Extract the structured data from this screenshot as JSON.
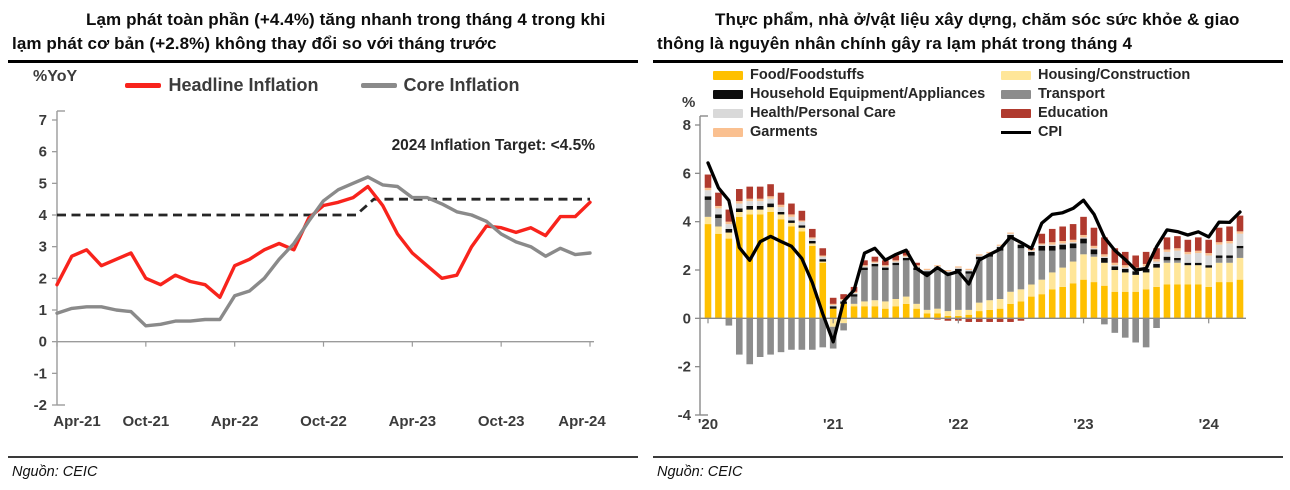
{
  "left_panel": {
    "source_label": "Nguồn: CEIC"
  },
  "right_panel": {
    "source_label": "Nguồn: CEIC"
  },
  "chart_data": [
    {
      "type": "line",
      "title": "Lạm phát toàn phần (+4.4%) tăng nhanh trong tháng 4 trong khi lạm phát cơ bản (+2.8%) không thay đổi so với tháng trước",
      "ylabel": "%YoY",
      "ylim": [
        -2,
        7
      ],
      "y_ticks": [
        7,
        6,
        5,
        4,
        3,
        2,
        1,
        0,
        -1,
        -2
      ],
      "x_tick_labels": [
        "Apr-21",
        "Oct-21",
        "Apr-22",
        "Oct-22",
        "Apr-23",
        "Oct-23",
        "Apr-24"
      ],
      "x_tick_indices": [
        0,
        6,
        12,
        18,
        24,
        30,
        36
      ],
      "x": [
        "Apr-21",
        "May-21",
        "Jun-21",
        "Jul-21",
        "Aug-21",
        "Sep-21",
        "Oct-21",
        "Nov-21",
        "Dec-21",
        "Jan-22",
        "Feb-22",
        "Mar-22",
        "Apr-22",
        "May-22",
        "Jun-22",
        "Jul-22",
        "Aug-22",
        "Sep-22",
        "Oct-22",
        "Nov-22",
        "Dec-22",
        "Jan-23",
        "Feb-23",
        "Mar-23",
        "Apr-23",
        "May-23",
        "Jun-23",
        "Jul-23",
        "Aug-23",
        "Sep-23",
        "Oct-23",
        "Nov-23",
        "Dec-23",
        "Jan-24",
        "Feb-24",
        "Mar-24",
        "Apr-24"
      ],
      "series": [
        {
          "name": "Headline Inflation",
          "color": "#F8231C",
          "values": [
            1.8,
            2.7,
            2.9,
            2.4,
            2.6,
            2.8,
            2.0,
            1.8,
            2.1,
            1.9,
            1.8,
            1.4,
            2.4,
            2.6,
            2.9,
            3.1,
            2.9,
            3.9,
            4.3,
            4.4,
            4.55,
            4.9,
            4.3,
            3.4,
            2.8,
            2.4,
            2.0,
            2.1,
            3.0,
            3.65,
            3.6,
            3.45,
            3.6,
            3.35,
            3.95,
            3.95,
            4.4
          ]
        },
        {
          "name": "Core Inflation",
          "color": "#8A8A8A",
          "values": [
            0.9,
            1.05,
            1.1,
            1.1,
            1.0,
            0.95,
            0.5,
            0.55,
            0.65,
            0.65,
            0.7,
            0.7,
            1.45,
            1.6,
            2.0,
            2.6,
            3.1,
            3.8,
            4.45,
            4.8,
            5.0,
            5.2,
            4.95,
            4.9,
            4.55,
            4.55,
            4.35,
            4.1,
            4.0,
            3.8,
            3.4,
            3.15,
            3.0,
            2.7,
            2.95,
            2.75,
            2.8
          ]
        }
      ],
      "target_lines": [
        {
          "value": 4.0,
          "from_index": 0,
          "to_index": 20.2
        },
        {
          "value": 4.5,
          "from_index": 21.4,
          "to_index": 36
        }
      ],
      "annotation": {
        "text": "2024 Inflation Target: <4.5%"
      },
      "legend_position": "top",
      "grid": false
    },
    {
      "type": "stacked-bar-line",
      "title": "Thực phẩm, nhà ở/vật liệu xây dựng, chăm sóc sức khỏe & giao thông là nguyên nhân chính gây ra lạm phát trong tháng 4",
      "ylabel": "%",
      "ylim": [
        -4,
        8
      ],
      "y_ticks": [
        8,
        6,
        4,
        2,
        0,
        -2,
        -4
      ],
      "x_tick_labels": [
        "'20",
        "'21",
        "'22",
        "'23",
        "'24"
      ],
      "x_tick_indices": [
        0,
        12,
        24,
        36,
        48
      ],
      "x": [
        "Jan-20",
        "Feb-20",
        "Mar-20",
        "Apr-20",
        "May-20",
        "Jun-20",
        "Jul-20",
        "Aug-20",
        "Sep-20",
        "Oct-20",
        "Nov-20",
        "Dec-20",
        "Jan-21",
        "Feb-21",
        "Mar-21",
        "Apr-21",
        "May-21",
        "Jun-21",
        "Jul-21",
        "Aug-21",
        "Sep-21",
        "Oct-21",
        "Nov-21",
        "Dec-21",
        "Jan-22",
        "Feb-22",
        "Mar-22",
        "Apr-22",
        "May-22",
        "Jun-22",
        "Jul-22",
        "Aug-22",
        "Sep-22",
        "Oct-22",
        "Nov-22",
        "Dec-22",
        "Jan-23",
        "Feb-23",
        "Mar-23",
        "Apr-23",
        "May-23",
        "Jun-23",
        "Jul-23",
        "Aug-23",
        "Sep-23",
        "Oct-23",
        "Nov-23",
        "Dec-23",
        "Jan-24",
        "Feb-24",
        "Mar-24",
        "Apr-24"
      ],
      "bar_series": [
        {
          "name": "Food/Foodstuffs",
          "color": "#FFC000",
          "values": [
            3.9,
            3.5,
            3.3,
            4.2,
            4.3,
            4.3,
            4.4,
            4.1,
            3.8,
            3.6,
            3.0,
            2.3,
            0.4,
            0.6,
            0.5,
            0.5,
            0.5,
            0.4,
            0.5,
            0.6,
            0.4,
            0.2,
            0.2,
            0.1,
            0.1,
            0.15,
            0.3,
            0.35,
            0.4,
            0.6,
            0.7,
            0.9,
            1.0,
            1.2,
            1.3,
            1.45,
            1.6,
            1.5,
            1.35,
            1.1,
            1.1,
            1.1,
            1.2,
            1.3,
            1.4,
            1.4,
            1.4,
            1.4,
            1.3,
            1.5,
            1.5,
            1.6
          ]
        },
        {
          "name": "Housing/Construction",
          "color": "#FFE699",
          "values": [
            0.3,
            0.3,
            0.25,
            0.2,
            0.2,
            0.2,
            0.2,
            0.2,
            0.15,
            0.15,
            0.1,
            0.05,
            -0.35,
            -0.2,
            0.1,
            0.2,
            0.25,
            0.3,
            0.3,
            0.3,
            0.2,
            0.15,
            0.2,
            0.2,
            0.25,
            0.2,
            0.35,
            0.4,
            0.4,
            0.5,
            0.5,
            0.5,
            0.6,
            0.7,
            0.8,
            0.9,
            1.05,
            1.05,
            0.95,
            0.9,
            0.8,
            0.7,
            0.7,
            0.8,
            0.9,
            0.9,
            0.8,
            0.8,
            0.8,
            0.8,
            0.8,
            0.9
          ]
        },
        {
          "name": "Transport",
          "color": "#8C8C8C",
          "values": [
            0.7,
            0.35,
            -0.3,
            -1.5,
            -1.9,
            -1.6,
            -1.5,
            -1.4,
            -1.3,
            -1.3,
            -1.3,
            -1.2,
            -0.9,
            -0.3,
            0.3,
            1.3,
            1.4,
            1.3,
            1.4,
            1.5,
            1.4,
            1.5,
            1.6,
            1.5,
            1.6,
            1.5,
            1.8,
            1.8,
            2.0,
            2.2,
            1.7,
            1.2,
            1.2,
            0.9,
            0.75,
            0.55,
            0.45,
            0.1,
            -0.25,
            -0.6,
            -0.8,
            -1.0,
            -1.2,
            -0.4,
            0.1,
            0.1,
            0.0,
            0.0,
            0.0,
            0.2,
            0.2,
            0.4
          ]
        },
        {
          "name": "Household Equipment/Appliances",
          "color": "#0D0D0D",
          "values": [
            0.15,
            0.15,
            0.15,
            0.15,
            0.15,
            0.15,
            0.15,
            0.1,
            0.1,
            0.1,
            0.1,
            0.1,
            0.1,
            0.1,
            0.1,
            0.1,
            0.1,
            0.1,
            0.1,
            0.1,
            0.1,
            0.1,
            0.1,
            0.1,
            0.1,
            0.1,
            0.1,
            0.1,
            0.15,
            0.15,
            0.15,
            0.15,
            0.2,
            0.2,
            0.2,
            0.2,
            0.2,
            0.2,
            0.2,
            0.15,
            0.15,
            0.15,
            0.15,
            0.15,
            0.15,
            0.1,
            0.1,
            0.1,
            0.1,
            0.1,
            0.1,
            0.1
          ]
        },
        {
          "name": "Health/Personal Care",
          "color": "#D9D9D9",
          "values": [
            0.25,
            0.25,
            0.2,
            0.2,
            0.2,
            0.2,
            0.2,
            0.2,
            0.15,
            0.15,
            0.1,
            0.1,
            0.05,
            0.05,
            0.05,
            0.05,
            0.05,
            0.05,
            0.05,
            0.05,
            0.05,
            0.05,
            0.05,
            0.05,
            0.05,
            0.05,
            0.05,
            0.05,
            0.05,
            0.05,
            0.05,
            0.05,
            0.05,
            0.05,
            0.05,
            0.05,
            0.05,
            0.05,
            0.05,
            0.05,
            0.05,
            0.05,
            0.1,
            0.1,
            0.2,
            0.3,
            0.35,
            0.4,
            0.4,
            0.45,
            0.5,
            0.5
          ]
        },
        {
          "name": "Garments",
          "color": "#FAC090",
          "values": [
            0.1,
            0.1,
            0.1,
            0.1,
            0.1,
            0.1,
            0.1,
            0.1,
            0.1,
            0.05,
            0.05,
            0.05,
            0.05,
            0.05,
            0.05,
            0.05,
            0.05,
            0.05,
            0.05,
            0.05,
            0.05,
            0.05,
            0.05,
            0.05,
            0.05,
            0.05,
            0.05,
            0.05,
            0.05,
            0.05,
            0.05,
            0.05,
            0.05,
            0.1,
            0.1,
            0.1,
            0.1,
            0.1,
            0.1,
            0.1,
            0.1,
            0.1,
            0.1,
            0.1,
            0.1,
            0.1,
            0.1,
            0.1,
            0.1,
            0.1,
            0.1,
            0.1
          ]
        },
        {
          "name": "Education",
          "color": "#B03A2E",
          "values": [
            0.55,
            0.55,
            0.5,
            0.5,
            0.5,
            0.5,
            0.5,
            0.5,
            0.45,
            0.4,
            0.35,
            0.3,
            0.25,
            0.2,
            0.2,
            0.2,
            0.2,
            0.2,
            0.2,
            0.2,
            0.1,
            0.0,
            -0.05,
            -0.1,
            -0.1,
            -0.15,
            -0.15,
            -0.15,
            -0.15,
            -0.15,
            -0.1,
            0.05,
            0.4,
            0.55,
            0.6,
            0.65,
            0.75,
            0.75,
            0.7,
            0.6,
            0.55,
            0.5,
            0.5,
            0.45,
            0.5,
            0.5,
            0.5,
            0.55,
            0.55,
            0.6,
            0.6,
            0.65
          ]
        }
      ],
      "line_series": {
        "name": "CPI",
        "color": "#000000",
        "values": [
          6.43,
          5.4,
          4.87,
          2.93,
          2.4,
          3.17,
          3.39,
          3.18,
          2.98,
          2.47,
          1.48,
          0.19,
          -0.97,
          0.7,
          1.16,
          2.7,
          2.9,
          2.41,
          2.64,
          2.82,
          2.06,
          1.77,
          2.1,
          1.81,
          1.94,
          1.42,
          2.41,
          2.64,
          2.86,
          3.37,
          3.14,
          2.89,
          3.94,
          4.3,
          4.37,
          4.55,
          4.89,
          4.31,
          3.35,
          2.81,
          2.43,
          2.0,
          2.06,
          2.96,
          3.66,
          3.59,
          3.45,
          3.58,
          3.37,
          3.98,
          3.97,
          4.4
        ]
      },
      "legend": [
        {
          "label": "Food/Foodstuffs",
          "color": "#FFC000",
          "shape": "bar"
        },
        {
          "label": "Housing/Construction",
          "color": "#FFE699",
          "shape": "bar"
        },
        {
          "label": "Household Equipment/Appliances",
          "color": "#0D0D0D",
          "shape": "bar"
        },
        {
          "label": "Transport",
          "color": "#8C8C8C",
          "shape": "bar"
        },
        {
          "label": "Health/Personal Care",
          "color": "#D9D9D9",
          "shape": "bar"
        },
        {
          "label": "Education",
          "color": "#B03A2E",
          "shape": "bar"
        },
        {
          "label": "Garments",
          "color": "#FAC090",
          "shape": "bar"
        },
        {
          "label": "CPI",
          "color": "#000000",
          "shape": "line"
        }
      ],
      "legend_position": "top",
      "grid": false
    }
  ]
}
